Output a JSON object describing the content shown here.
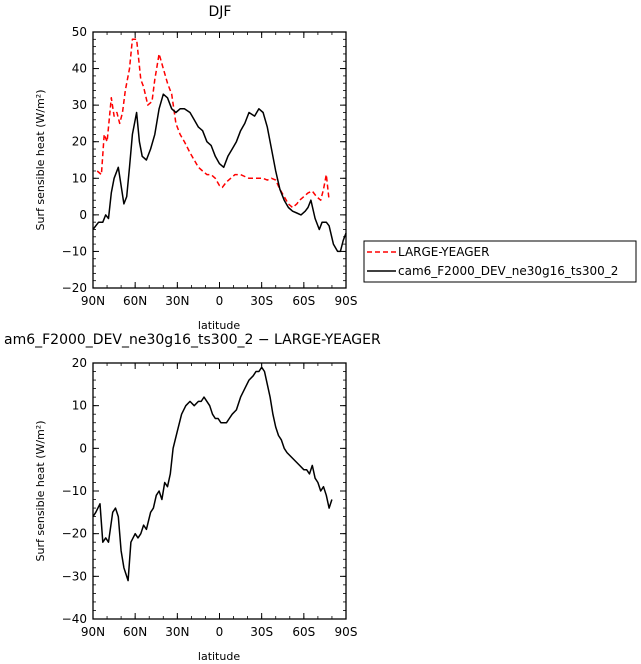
{
  "chart_data": [
    {
      "type": "line",
      "title": "DJF",
      "xlabel": "latitude",
      "ylabel": "Surf sensible heat (W/m²)",
      "xlim": [
        90,
        -90
      ],
      "ylim": [
        -20,
        50
      ],
      "x_ticks": [
        90,
        60,
        30,
        0,
        -30,
        -60,
        -90
      ],
      "x_tick_labels": [
        "90N",
        "60N",
        "30N",
        "0",
        "30S",
        "60S",
        "90S"
      ],
      "y_ticks": [
        -20,
        -10,
        0,
        10,
        20,
        30,
        40,
        50
      ],
      "y_tick_labels": [
        "−20",
        "−10",
        "0",
        "10",
        "20",
        "30",
        "40",
        "50"
      ],
      "legend_position": "right",
      "series": [
        {
          "name": "LARGE-YEAGER",
          "color": "#ff0000",
          "style": "dashed",
          "points": [
            [
              87,
              12
            ],
            [
              84,
              11
            ],
            [
              82,
              22
            ],
            [
              80,
              20
            ],
            [
              77,
              32
            ],
            [
              75,
              27
            ],
            [
              73,
              28
            ],
            [
              71,
              25
            ],
            [
              69,
              28
            ],
            [
              67,
              34
            ],
            [
              64,
              40
            ],
            [
              62,
              48
            ],
            [
              59,
              48
            ],
            [
              56,
              37
            ],
            [
              54,
              35
            ],
            [
              51,
              30
            ],
            [
              48,
              31
            ],
            [
              46,
              37
            ],
            [
              43,
              44
            ],
            [
              40,
              40
            ],
            [
              37,
              36
            ],
            [
              34,
              33
            ],
            [
              31,
              25
            ],
            [
              28,
              22
            ],
            [
              25,
              20
            ],
            [
              21,
              17
            ],
            [
              18,
              15
            ],
            [
              15,
              13
            ],
            [
              12,
              12
            ],
            [
              9,
              11
            ],
            [
              6,
              11
            ],
            [
              3,
              10
            ],
            [
              0,
              8
            ],
            [
              -2,
              7.5
            ],
            [
              -5,
              9
            ],
            [
              -8,
              10
            ],
            [
              -11,
              11
            ],
            [
              -15,
              11
            ],
            [
              -18,
              10.5
            ],
            [
              -21,
              10
            ],
            [
              -25,
              10
            ],
            [
              -28,
              10
            ],
            [
              -31,
              10
            ],
            [
              -34,
              9.5
            ],
            [
              -37,
              10
            ],
            [
              -40,
              9.5
            ],
            [
              -43,
              7
            ],
            [
              -46,
              5
            ],
            [
              -49,
              3
            ],
            [
              -52,
              2
            ],
            [
              -55,
              3
            ],
            [
              -57,
              4
            ],
            [
              -60,
              5
            ],
            [
              -63,
              6
            ],
            [
              -66,
              6.5
            ],
            [
              -69,
              5
            ],
            [
              -72,
              4
            ],
            [
              -74,
              7
            ],
            [
              -76,
              11
            ],
            [
              -78,
              4
            ]
          ]
        },
        {
          "name": "cam6_F2000_DEV_ne30g16_ts300_2",
          "color": "#000000",
          "style": "solid",
          "points": [
            [
              90,
              -4
            ],
            [
              88,
              -3
            ],
            [
              86,
              -2
            ],
            [
              83,
              -2
            ],
            [
              81,
              0
            ],
            [
              79,
              -1
            ],
            [
              77,
              6
            ],
            [
              75,
              10
            ],
            [
              72,
              13
            ],
            [
              70,
              8
            ],
            [
              68,
              3
            ],
            [
              66,
              5
            ],
            [
              64,
              13
            ],
            [
              62,
              22
            ],
            [
              59,
              28
            ],
            [
              57,
              20
            ],
            [
              55,
              16
            ],
            [
              52,
              15
            ],
            [
              49,
              18
            ],
            [
              46,
              22
            ],
            [
              43,
              29
            ],
            [
              40,
              33
            ],
            [
              37,
              32
            ],
            [
              34,
              29
            ],
            [
              31,
              28
            ],
            [
              28,
              29
            ],
            [
              25,
              29
            ],
            [
              21,
              28
            ],
            [
              18,
              26
            ],
            [
              15,
              24
            ],
            [
              12,
              23
            ],
            [
              9,
              20
            ],
            [
              6,
              19
            ],
            [
              3,
              16
            ],
            [
              0,
              14
            ],
            [
              -3,
              13
            ],
            [
              -6,
              16
            ],
            [
              -9,
              18
            ],
            [
              -12,
              20
            ],
            [
              -15,
              23
            ],
            [
              -18,
              25
            ],
            [
              -21,
              28
            ],
            [
              -25,
              27
            ],
            [
              -28,
              29
            ],
            [
              -31,
              28
            ],
            [
              -34,
              24
            ],
            [
              -37,
              18
            ],
            [
              -40,
              12
            ],
            [
              -43,
              7
            ],
            [
              -46,
              4
            ],
            [
              -49,
              2
            ],
            [
              -52,
              1
            ],
            [
              -55,
              0.5
            ],
            [
              -58,
              0
            ],
            [
              -61,
              1
            ],
            [
              -63,
              2
            ],
            [
              -65,
              4
            ],
            [
              -68,
              -1
            ],
            [
              -71,
              -4
            ],
            [
              -73,
              -2
            ],
            [
              -76,
              -2
            ],
            [
              -78,
              -3
            ],
            [
              -81,
              -8
            ],
            [
              -84,
              -10
            ],
            [
              -86,
              -10
            ],
            [
              -88,
              -7
            ],
            [
              -90,
              -5
            ]
          ]
        }
      ]
    },
    {
      "type": "line",
      "title": "am6_F2000_DEV_ne30g16_ts300_2 − LARGE-YEAGER",
      "xlabel": "latitude",
      "ylabel": "Surf sensible heat (W/m²)",
      "xlim": [
        90,
        -90
      ],
      "ylim": [
        -40,
        20
      ],
      "x_ticks": [
        90,
        60,
        30,
        0,
        -30,
        -60,
        -90
      ],
      "x_tick_labels": [
        "90N",
        "60N",
        "30N",
        "0",
        "30S",
        "60S",
        "90S"
      ],
      "y_ticks": [
        -40,
        -30,
        -20,
        -10,
        0,
        10,
        20
      ],
      "y_tick_labels": [
        "−40",
        "−30",
        "−20",
        "−10",
        "0",
        "10",
        "20"
      ],
      "series": [
        {
          "color": "#000000",
          "style": "solid",
          "points": [
            [
              90,
              -16
            ],
            [
              88,
              -15
            ],
            [
              85,
              -13
            ],
            [
              83,
              -22
            ],
            [
              81,
              -21
            ],
            [
              79,
              -22
            ],
            [
              76,
              -15
            ],
            [
              74,
              -14
            ],
            [
              72,
              -16
            ],
            [
              70,
              -24
            ],
            [
              68,
              -28
            ],
            [
              65,
              -31
            ],
            [
              63,
              -22
            ],
            [
              60,
              -20
            ],
            [
              58,
              -21
            ],
            [
              56,
              -20
            ],
            [
              54,
              -18
            ],
            [
              52,
              -19
            ],
            [
              49,
              -15
            ],
            [
              47,
              -14
            ],
            [
              45,
              -11
            ],
            [
              43,
              -10
            ],
            [
              41,
              -12
            ],
            [
              39,
              -8
            ],
            [
              37,
              -9
            ],
            [
              35,
              -6
            ],
            [
              33,
              0
            ],
            [
              30,
              4
            ],
            [
              27,
              8
            ],
            [
              24,
              10
            ],
            [
              21,
              11
            ],
            [
              18,
              10
            ],
            [
              15,
              11
            ],
            [
              13,
              11
            ],
            [
              11,
              12
            ],
            [
              9,
              11
            ],
            [
              7,
              10
            ],
            [
              5,
              8
            ],
            [
              3,
              7
            ],
            [
              1,
              7
            ],
            [
              -1,
              6
            ],
            [
              -3,
              6
            ],
            [
              -5,
              6
            ],
            [
              -7,
              7
            ],
            [
              -9,
              8
            ],
            [
              -12,
              9
            ],
            [
              -15,
              12
            ],
            [
              -18,
              14
            ],
            [
              -21,
              16
            ],
            [
              -24,
              17
            ],
            [
              -26,
              18
            ],
            [
              -28,
              18
            ],
            [
              -30,
              19
            ],
            [
              -32,
              18
            ],
            [
              -34,
              15
            ],
            [
              -36,
              12
            ],
            [
              -38,
              8
            ],
            [
              -40,
              5
            ],
            [
              -42,
              3
            ],
            [
              -44,
              2
            ],
            [
              -46,
              0
            ],
            [
              -48,
              -1
            ],
            [
              -51,
              -2
            ],
            [
              -54,
              -3
            ],
            [
              -57,
              -4
            ],
            [
              -60,
              -5
            ],
            [
              -62,
              -5
            ],
            [
              -64,
              -6
            ],
            [
              -66,
              -4
            ],
            [
              -68,
              -7
            ],
            [
              -70,
              -8
            ],
            [
              -72,
              -10
            ],
            [
              -74,
              -9
            ],
            [
              -76,
              -11
            ],
            [
              -78,
              -14
            ],
            [
              -80,
              -12
            ]
          ]
        }
      ]
    }
  ]
}
